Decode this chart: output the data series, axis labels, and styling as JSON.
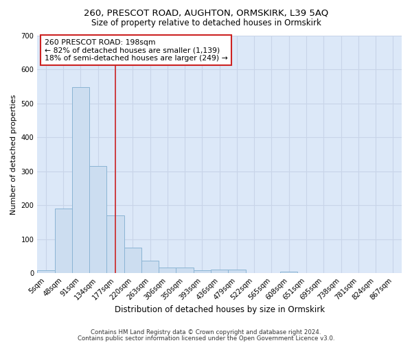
{
  "title1": "260, PRESCOT ROAD, AUGHTON, ORMSKIRK, L39 5AQ",
  "title2": "Size of property relative to detached houses in Ormskirk",
  "xlabel": "Distribution of detached houses by size in Ormskirk",
  "ylabel": "Number of detached properties",
  "bar_labels": [
    "5sqm",
    "48sqm",
    "91sqm",
    "134sqm",
    "177sqm",
    "220sqm",
    "263sqm",
    "306sqm",
    "350sqm",
    "393sqm",
    "436sqm",
    "479sqm",
    "522sqm",
    "565sqm",
    "608sqm",
    "651sqm",
    "695sqm",
    "738sqm",
    "781sqm",
    "824sqm",
    "867sqm"
  ],
  "bar_values": [
    8,
    190,
    548,
    315,
    170,
    75,
    38,
    18,
    18,
    8,
    12,
    12,
    0,
    0,
    5,
    0,
    0,
    0,
    0,
    0,
    0
  ],
  "bar_color": "#ccddf0",
  "bar_edgecolor": "#8ab4d4",
  "bar_linewidth": 0.7,
  "vline_color": "#cc2222",
  "vline_linewidth": 1.2,
  "annotation_title": "260 PRESCOT ROAD: 198sqm",
  "annotation_line2": "← 82% of detached houses are smaller (1,139)",
  "annotation_line3": "18% of semi-detached houses are larger (249) →",
  "annotation_box_edgecolor": "#cc2222",
  "ylim": [
    0,
    700
  ],
  "yticks": [
    0,
    100,
    200,
    300,
    400,
    500,
    600,
    700
  ],
  "grid_color": "#c8d4e8",
  "bg_color": "#dce8f8",
  "footnote1": "Contains HM Land Registry data © Crown copyright and database right 2024.",
  "footnote2": "Contains public sector information licensed under the Open Government Licence v3.0."
}
